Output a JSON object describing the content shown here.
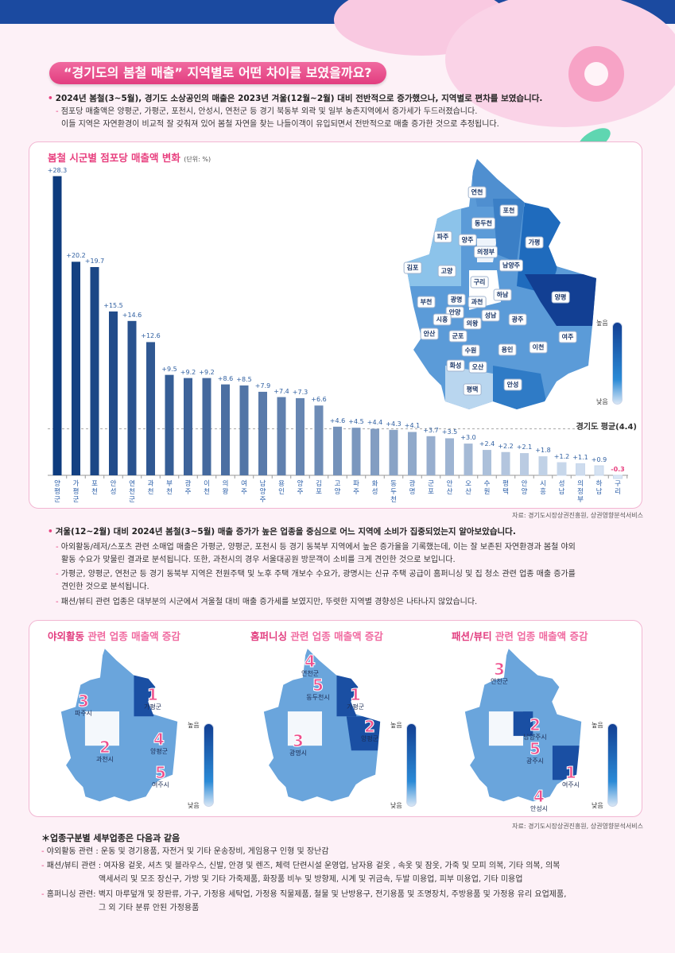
{
  "header": {
    "title": "“경기도의 봄철 매출” 지역별로 어떤 차이를 보였을까요?"
  },
  "intro": {
    "bullet": "2024년 봄철(3~5월), 경기도 소상공인의 매출은 2023년 겨울(12월~2월) 대비 전반적으로 증가했으나, 지역별로 편차를 보였습니다.",
    "sub1": "점포당 매출액은 양평군, 가평군, 포천시, 안성시, 연천군 등 경기 북동부 외곽 및 일부 농촌지역에서 증가세가 두드러졌습니다.",
    "sub2": "이들 지역은 자연환경이 비교적 잘 갖춰져 있어 봄철 자연을 찾는 나들이객이 유입되면서 전반적으로 매출 증가한 것으로 추정됩니다."
  },
  "chart_data": {
    "type": "bar",
    "title": "봄철 시군별 점포당 매출액 변화",
    "unit": "(단위: %)",
    "categories": [
      "양평군",
      "가평군",
      "포천",
      "안성",
      "연천군",
      "과천",
      "부천",
      "광주",
      "이천",
      "의왕",
      "여주",
      "남양주",
      "용인",
      "양주",
      "김포",
      "고양",
      "파주",
      "화성",
      "동두천",
      "광명",
      "군포",
      "안산",
      "오산",
      "수원",
      "평택",
      "안양",
      "시흥",
      "성남",
      "의정부",
      "하남",
      "구리"
    ],
    "values": [
      28.3,
      20.2,
      19.7,
      15.5,
      14.6,
      12.6,
      9.5,
      9.2,
      9.2,
      8.6,
      8.5,
      7.9,
      7.4,
      7.3,
      6.6,
      4.6,
      4.5,
      4.4,
      4.3,
      4.1,
      3.7,
      3.5,
      3.0,
      2.4,
      2.2,
      2.1,
      1.8,
      1.2,
      1.1,
      0.9,
      -0.3
    ],
    "value_labels": [
      "+28.3",
      "+20.2",
      "+19.7",
      "+15.5",
      "+14.6",
      "+12.6",
      "+9.5",
      "+9.2",
      "+9.2",
      "+8.6",
      "+8.5",
      "+7.9",
      "+7.4",
      "+7.3",
      "+6.6",
      "+4.6",
      "+4.5",
      "+4.4",
      "+4.3",
      "+4.1",
      "+3.7",
      "+3.5",
      "+3.0",
      "+2.4",
      "+2.2",
      "+2.1",
      "+1.8",
      "+1.2",
      "+1.1",
      "+0.9",
      "-0.3"
    ],
    "reference_line": {
      "label": "경기도 평균(4.4)",
      "value": 4.4
    },
    "ylim": [
      -0.5,
      30
    ],
    "colors": {
      "high": "#0d3b7e",
      "low": "#e3ecf7",
      "negative": "#e8407f"
    }
  },
  "map": {
    "regions": [
      "연천",
      "포천",
      "동두천",
      "파주",
      "양주",
      "의정부",
      "가평",
      "남양주",
      "김포",
      "고양",
      "구리",
      "하남",
      "양평",
      "부천",
      "광명",
      "과천",
      "안양",
      "시흥",
      "성남",
      "의왕",
      "광주",
      "안산",
      "군포",
      "여주",
      "수원",
      "용인",
      "이천",
      "화성",
      "오산",
      "평택",
      "안성"
    ],
    "legend_high": "높음",
    "legend_low": "낮음"
  },
  "source": "자료: 경기도시장상권진흥원, 상권영향분석서비스",
  "section2": {
    "bullet": "겨울(12~2월) 대비 2024년 봄철(3~5월) 매출 증가가 높은 업종을 중심으로 어느 지역에 소비가 집중되었는지 알아보았습니다.",
    "sub1a": "아외활동/레저/스포츠 관련 소매업 매출은 가평군, 양평군, 포천시 등 경기 동북부 지역에서 높은 증가율을 기록했는데, 이는 잘 보존된 자연환경과 봄철 야외",
    "sub1b": "활동 수요가 맞물린 결과로 분석됩니다. 또한, 과천시의 경우 서울대공원 방문객이 소비를 크게 견인한 것으로 보입니다.",
    "sub2a": "가평군, 양평군, 연천군 등 경기 동북부 지역은 전원주택 및 노후 주택 개보수 수요가, 광명시는 신규 주택 공급이 홈퍼니싱 및 집 청소 관련 업종 매출 증가를",
    "sub2b": "견인한 것으로 분석됩니다.",
    "sub3": "패션/뷰티 관련 업종은 대부분의 시군에서 겨울철 대비 매출 증가세를 보였지만, 뚜렷한 지역별 경향성은 나타나지 않았습니다."
  },
  "small_maps": [
    {
      "title_bold": "야외활동",
      "title_rest": " 관련 업종 매출액 증감",
      "ranks": [
        {
          "n": "1",
          "name": "가평군"
        },
        {
          "n": "2",
          "name": "과천시"
        },
        {
          "n": "3",
          "name": "파주시"
        },
        {
          "n": "4",
          "name": "양평군"
        },
        {
          "n": "5",
          "name": "여주시"
        }
      ]
    },
    {
      "title_bold": "홈퍼니싱",
      "title_rest": " 관련 업종 매출액 증감",
      "ranks": [
        {
          "n": "1",
          "name": "가평군"
        },
        {
          "n": "2",
          "name": "양평군"
        },
        {
          "n": "3",
          "name": "광명시"
        },
        {
          "n": "4",
          "name": "연천군"
        },
        {
          "n": "5",
          "name": "동두천시"
        }
      ]
    },
    {
      "title_bold": "패션/뷰티",
      "title_rest": " 관련 업종 매출액 증감",
      "ranks": [
        {
          "n": "1",
          "name": "여주시"
        },
        {
          "n": "2",
          "name": "남양주시"
        },
        {
          "n": "3",
          "name": "연천군"
        },
        {
          "n": "4",
          "name": "안성시"
        },
        {
          "n": "5",
          "name": "광주시"
        }
      ]
    }
  ],
  "notes": {
    "heading": "＊업종구분별 세부업종은 다음과 같음",
    "outdoor": "야외활동 관련 : 운동 및 경기용품, 자전거 및 기타 운송장비, 게임용구 인형 및 장난감",
    "fashion_a": "패션/뷰티 관련 : 여자용 겉옷, 셔츠 및 블라우스, 신발, 안경 및 렌즈, 체력 단련시설 운영업, 남자용 겉옷 , 속옷 및 잠옷, 가죽 및 모피 의복, 기타 의복, 의복",
    "fashion_b": "액세서리 및 모조 장신구, 가방 및 기타 가죽제품, 화장품 비누 및 방향제, 시계 및 귀금속, 두발 미용업, 피부 미용업, 기타 미용업",
    "home_a": "홈퍼니싱 관련: 벽지 마루덮개 및 장판류, 가구, 가정용 세탁업, 가정용 직물제품, 철물 및 난방용구, 전기용품 및 조명장치, 주방용품 및 가정용 유리 요업제품,",
    "home_b": "그 외 기타 분류 안된 가정용품"
  }
}
